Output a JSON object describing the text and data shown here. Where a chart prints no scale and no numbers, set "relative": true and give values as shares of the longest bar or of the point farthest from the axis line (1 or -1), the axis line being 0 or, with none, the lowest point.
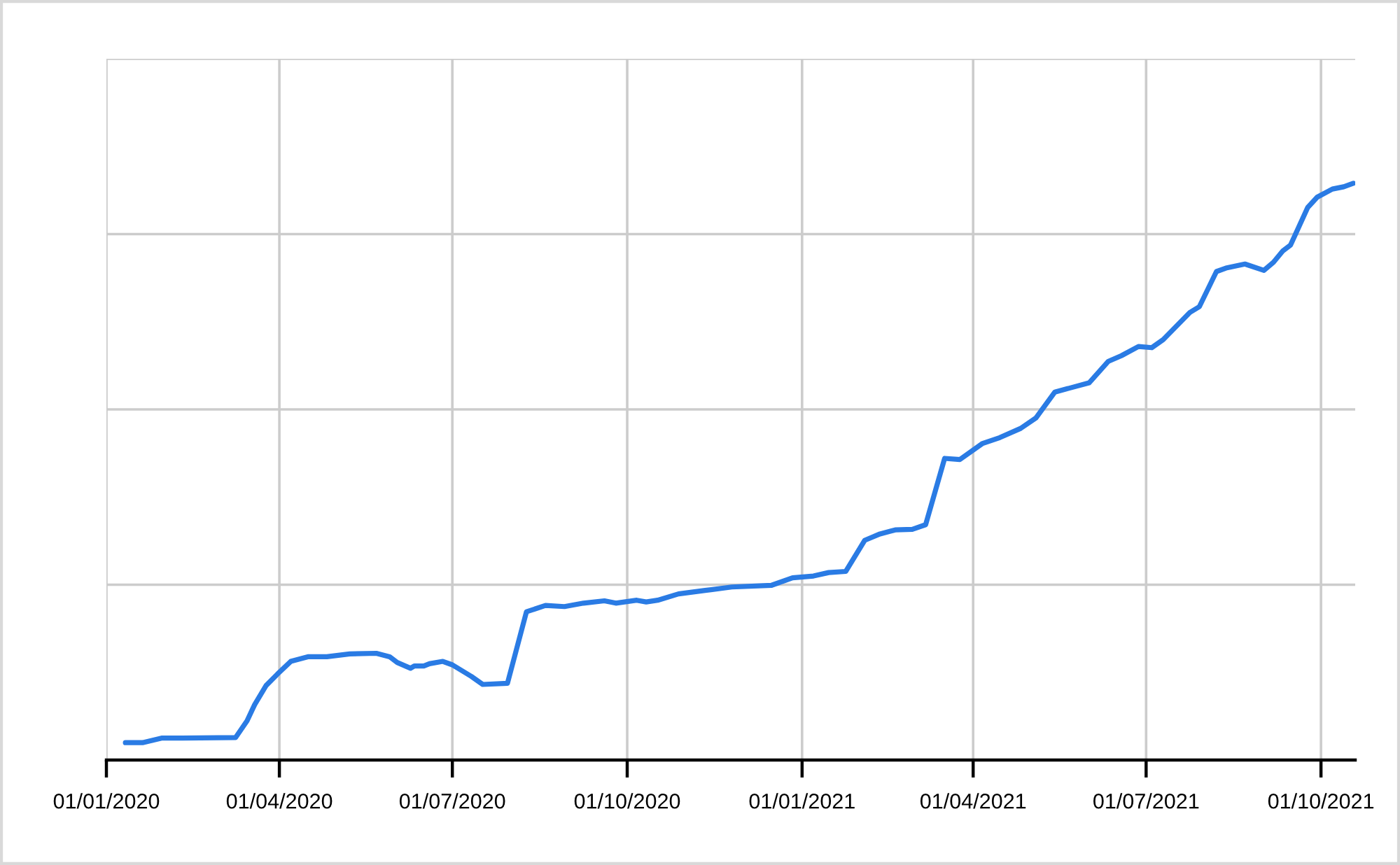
{
  "chart_data": {
    "type": "line",
    "relative": true,
    "grid": true,
    "line_style": "solid",
    "x": [
      "2020-01-11",
      "2020-01-20",
      "2020-01-30",
      "2020-02-10",
      "2020-03-09",
      "2020-03-15",
      "2020-03-19",
      "2020-03-25",
      "2020-03-31",
      "2020-04-07",
      "2020-04-16",
      "2020-04-26",
      "2020-05-08",
      "2020-05-22",
      "2020-05-29",
      "2020-06-02",
      "2020-06-09",
      "2020-06-11",
      "2020-06-16",
      "2020-06-19",
      "2020-06-26",
      "2020-07-01",
      "2020-07-11",
      "2020-07-17",
      "2020-07-30",
      "2020-08-09",
      "2020-08-19",
      "2020-08-29",
      "2020-09-08",
      "2020-09-19",
      "2020-09-25",
      "2020-10-06",
      "2020-10-11",
      "2020-10-17",
      "2020-10-28",
      "2020-11-11",
      "2020-11-25",
      "2020-12-16",
      "2020-12-27",
      "2021-01-07",
      "2021-01-15",
      "2021-01-24",
      "2021-02-03",
      "2021-02-11",
      "2021-02-19",
      "2021-02-28",
      "2021-03-07",
      "2021-03-17",
      "2021-03-25",
      "2021-04-06",
      "2021-04-15",
      "2021-04-26",
      "2021-05-04",
      "2021-05-14",
      "2021-05-23",
      "2021-06-01",
      "2021-06-11",
      "2021-06-18",
      "2021-06-27",
      "2021-07-04",
      "2021-07-10",
      "2021-07-24",
      "2021-07-29",
      "2021-08-07",
      "2021-08-12",
      "2021-08-22",
      "2021-09-01",
      "2021-09-06",
      "2021-09-11",
      "2021-09-15",
      "2021-09-19",
      "2021-09-24",
      "2021-09-29",
      "2021-10-07",
      "2021-10-13",
      "2021-10-18"
    ],
    "series": [
      {
        "color": "#2a7be4",
        "values": [
          0.03,
          0.03,
          0.038,
          0.038,
          0.039,
          0.068,
          0.096,
          0.129,
          0.149,
          0.171,
          0.179,
          0.179,
          0.184,
          0.185,
          0.179,
          0.169,
          0.159,
          0.163,
          0.163,
          0.167,
          0.171,
          0.165,
          0.145,
          0.131,
          0.133,
          0.257,
          0.268,
          0.266,
          0.272,
          0.276,
          0.272,
          0.277,
          0.274,
          0.277,
          0.288,
          0.294,
          0.3,
          0.303,
          0.316,
          0.319,
          0.325,
          0.327,
          0.381,
          0.392,
          0.399,
          0.4,
          0.408,
          0.523,
          0.521,
          0.549,
          0.559,
          0.575,
          0.593,
          0.638,
          0.646,
          0.654,
          0.691,
          0.701,
          0.717,
          0.715,
          0.729,
          0.776,
          0.786,
          0.847,
          0.853,
          0.86,
          0.849,
          0.863,
          0.883,
          0.893,
          0.922,
          0.958,
          0.976,
          0.99,
          0.994,
          1.0
        ]
      }
    ],
    "xlim": [
      "2020-01-01",
      "2021-10-19"
    ],
    "xticks": [
      {
        "value": "2020-01-01",
        "label": "01/01/2020"
      },
      {
        "value": "2020-04-01",
        "label": "01/04/2020"
      },
      {
        "value": "2020-07-01",
        "label": "01/07/2020"
      },
      {
        "value": "2020-10-01",
        "label": "01/10/2020"
      },
      {
        "value": "2021-01-01",
        "label": "01/01/2021"
      },
      {
        "value": "2021-04-01",
        "label": "01/04/2021"
      },
      {
        "value": "2021-07-01",
        "label": "01/07/2021"
      },
      {
        "value": "2021-10-01",
        "label": "01/10/2021"
      }
    ]
  }
}
